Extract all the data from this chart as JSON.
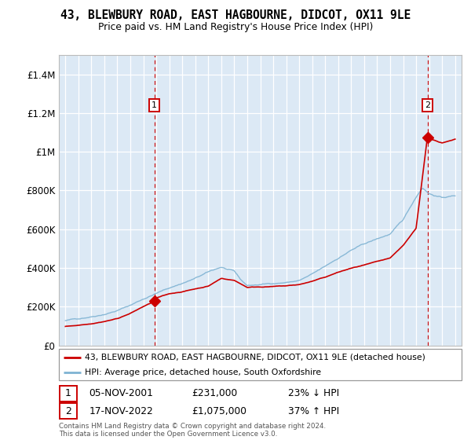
{
  "title": "43, BLEWBURY ROAD, EAST HAGBOURNE, DIDCOT, OX11 9LE",
  "subtitle": "Price paid vs. HM Land Registry's House Price Index (HPI)",
  "legend_line1": "43, BLEWBURY ROAD, EAST HAGBOURNE, DIDCOT, OX11 9LE (detached house)",
  "legend_line2": "HPI: Average price, detached house, South Oxfordshire",
  "annotation1_date": "05-NOV-2001",
  "annotation1_price": "£231,000",
  "annotation1_hpi": "23% ↓ HPI",
  "annotation2_date": "17-NOV-2022",
  "annotation2_price": "£1,075,000",
  "annotation2_hpi": "37% ↑ HPI",
  "footer": "Contains HM Land Registry data © Crown copyright and database right 2024.\nThis data is licensed under the Open Government Licence v3.0.",
  "sale1_x": 2001.85,
  "sale1_y": 231000,
  "sale2_x": 2022.88,
  "sale2_y": 1075000,
  "vline1_x": 2001.85,
  "vline2_x": 2022.88,
  "ylim": [
    0,
    1500000
  ],
  "xlim": [
    1994.5,
    2025.5
  ],
  "yticks": [
    0,
    200000,
    400000,
    600000,
    800000,
    1000000,
    1200000,
    1400000
  ],
  "ytick_labels": [
    "£0",
    "£200K",
    "£400K",
    "£600K",
    "£800K",
    "£1M",
    "£1.2M",
    "£1.4M"
  ],
  "xticks": [
    1995,
    1996,
    1997,
    1998,
    1999,
    2000,
    2001,
    2002,
    2003,
    2004,
    2005,
    2006,
    2007,
    2008,
    2009,
    2010,
    2011,
    2012,
    2013,
    2014,
    2015,
    2016,
    2017,
    2018,
    2019,
    2020,
    2021,
    2022,
    2023,
    2024,
    2025
  ],
  "bg_color": "#dce9f5",
  "grid_color": "#ffffff",
  "red_color": "#cc0000",
  "blue_color": "#7fb3d3",
  "vline_color": "#cc0000",
  "hpi_anchors_x": [
    1995,
    1996,
    1997,
    1998,
    1999,
    2000,
    2001,
    2002,
    2003,
    2004,
    2005,
    2006,
    2007,
    2008,
    2008.5,
    2009,
    2010,
    2011,
    2012,
    2013,
    2014,
    2015,
    2016,
    2017,
    2018,
    2019,
    2020,
    2021,
    2022,
    2022.5,
    2023,
    2024,
    2025
  ],
  "hpi_anchors_y": [
    128000,
    138000,
    152000,
    168000,
    188000,
    215000,
    248000,
    278000,
    305000,
    330000,
    355000,
    385000,
    410000,
    385000,
    340000,
    310000,
    315000,
    322000,
    328000,
    338000,
    368000,
    405000,
    448000,
    490000,
    520000,
    545000,
    570000,
    640000,
    760000,
    810000,
    780000,
    760000,
    770000
  ],
  "red_anchors_x": [
    1995,
    1996,
    1997,
    1998,
    1999,
    2000,
    2001,
    2001.85,
    2002,
    2003,
    2004,
    2005,
    2006,
    2007,
    2008,
    2009,
    2010,
    2011,
    2012,
    2013,
    2014,
    2015,
    2016,
    2017,
    2018,
    2019,
    2020,
    2021,
    2022,
    2022.88,
    2023,
    2024,
    2025
  ],
  "red_anchors_y": [
    98000,
    105000,
    115000,
    128000,
    143000,
    170000,
    205000,
    231000,
    248000,
    268000,
    280000,
    295000,
    310000,
    350000,
    340000,
    305000,
    308000,
    310000,
    312000,
    318000,
    335000,
    355000,
    380000,
    400000,
    415000,
    430000,
    445000,
    510000,
    600000,
    1075000,
    1060000,
    1040000,
    1060000
  ]
}
